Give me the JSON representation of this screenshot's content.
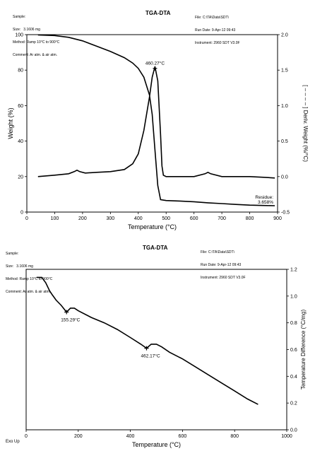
{
  "top": {
    "header_left": [
      "Sample:",
      "Size:   3.1606 mg",
      "Method: Ramp 10°C to 900°C",
      "Comment: Ar atm. & air atm."
    ],
    "title": "TGA-DTA",
    "header_right": [
      "File: C:\\TA\\Data\\SDT\\",
      "Run Date: 9-Apr-12 09:43",
      "Instrument: 2960 SDT V3.0F"
    ]
  },
  "bottom": {
    "header_left": [
      "Sample:",
      "Size:   3.1606 mg",
      "Method: Ramp 10°C to 900°C",
      "Comment: Ar atm. & air atm."
    ],
    "title": "TGA-DTA",
    "header_right": [
      "File: C:\\TA\\Data\\SDT\\",
      "Run Date: 9-Apr-12 09:43",
      "Instrument: 2960 SDT V3.0F"
    ],
    "footer_left": "Exo Up"
  },
  "chart_data": [
    {
      "type": "line",
      "xlabel": "Temperature (°C)",
      "ylabel": "Weight (%)",
      "y2label": "[ – – – – ] Deriv. Weight (%/°C)",
      "xlim": [
        0,
        900
      ],
      "ylim": [
        0,
        100
      ],
      "y2lim": [
        -0.5,
        2.0
      ],
      "xticks": [
        0,
        100,
        200,
        300,
        400,
        500,
        600,
        700,
        800,
        900
      ],
      "yticks": [
        0,
        20,
        40,
        60,
        80,
        100
      ],
      "y2ticks": [
        -0.5,
        0.0,
        0.5,
        1.0,
        1.5,
        2.0
      ],
      "y2tick_labels": [
        "-0.5",
        "0.0",
        "0.5",
        "1.0",
        "1.5",
        "2.0"
      ],
      "series": [
        {
          "axis": "left",
          "x": [
            40,
            100,
            150,
            200,
            250,
            300,
            350,
            380,
            400,
            420,
            440,
            450,
            460,
            470,
            480,
            500,
            550,
            600,
            650,
            700,
            750,
            800,
            850,
            890
          ],
          "y": [
            99.8,
            99.5,
            98.5,
            96.5,
            93.5,
            90.5,
            87,
            84,
            81,
            76,
            66,
            55,
            35,
            15,
            7,
            6.5,
            6.2,
            5.8,
            5.2,
            4.8,
            4.3,
            3.9,
            3.7,
            3.6
          ]
        },
        {
          "axis": "right",
          "x": [
            40,
            100,
            150,
            170,
            180,
            190,
            210,
            250,
            300,
            350,
            380,
            400,
            420,
            440,
            450,
            460,
            470,
            480,
            485,
            490,
            500,
            550,
            600,
            640,
            650,
            660,
            700,
            750,
            800,
            850,
            890
          ],
          "y": [
            0.0,
            0.02,
            0.04,
            0.07,
            0.09,
            0.07,
            0.05,
            0.06,
            0.07,
            0.1,
            0.18,
            0.32,
            0.65,
            1.12,
            1.4,
            1.55,
            1.35,
            0.6,
            0.15,
            0.02,
            0.0,
            0.0,
            0.0,
            0.04,
            0.06,
            0.04,
            0.0,
            0.0,
            0.0,
            -0.01,
            -0.02
          ]
        }
      ],
      "annotations": [
        {
          "text": "460.27°C",
          "x": 460,
          "y": 81
        },
        {
          "text": "Residue:\n3.658%",
          "x": 890,
          "y": 3.6
        }
      ]
    },
    {
      "type": "line",
      "xlabel": "Temperature (°C)",
      "ylabel": "Temperature Difference (°C/mg)",
      "xlim": [
        0,
        1000
      ],
      "ylim": [
        0.0,
        1.2
      ],
      "xticks": [
        0,
        200,
        400,
        600,
        800,
        1000
      ],
      "yticks": [
        0.0,
        0.2,
        0.4,
        0.6,
        0.8,
        1.0,
        1.2
      ],
      "ytick_labels": [
        "0.0",
        "0.2",
        "0.4",
        "0.6",
        "0.8",
        "1.0",
        "1.2"
      ],
      "series": [
        {
          "x": [
            40,
            60,
            75,
            90,
            100,
            115,
            135,
            155,
            170,
            185,
            200,
            250,
            300,
            350,
            400,
            440,
            462,
            480,
            500,
            520,
            550,
            600,
            650,
            700,
            750,
            800,
            850,
            890
          ],
          "y": [
            1.14,
            1.14,
            1.1,
            1.04,
            1.01,
            0.97,
            0.93,
            0.88,
            0.91,
            0.91,
            0.89,
            0.84,
            0.8,
            0.75,
            0.69,
            0.64,
            0.61,
            0.64,
            0.64,
            0.62,
            0.58,
            0.53,
            0.47,
            0.41,
            0.35,
            0.29,
            0.23,
            0.19
          ]
        }
      ],
      "annotations": [
        {
          "text": "155.29°C",
          "x": 155,
          "y": 0.88
        },
        {
          "text": "462.17°C",
          "x": 462,
          "y": 0.61
        }
      ]
    }
  ]
}
